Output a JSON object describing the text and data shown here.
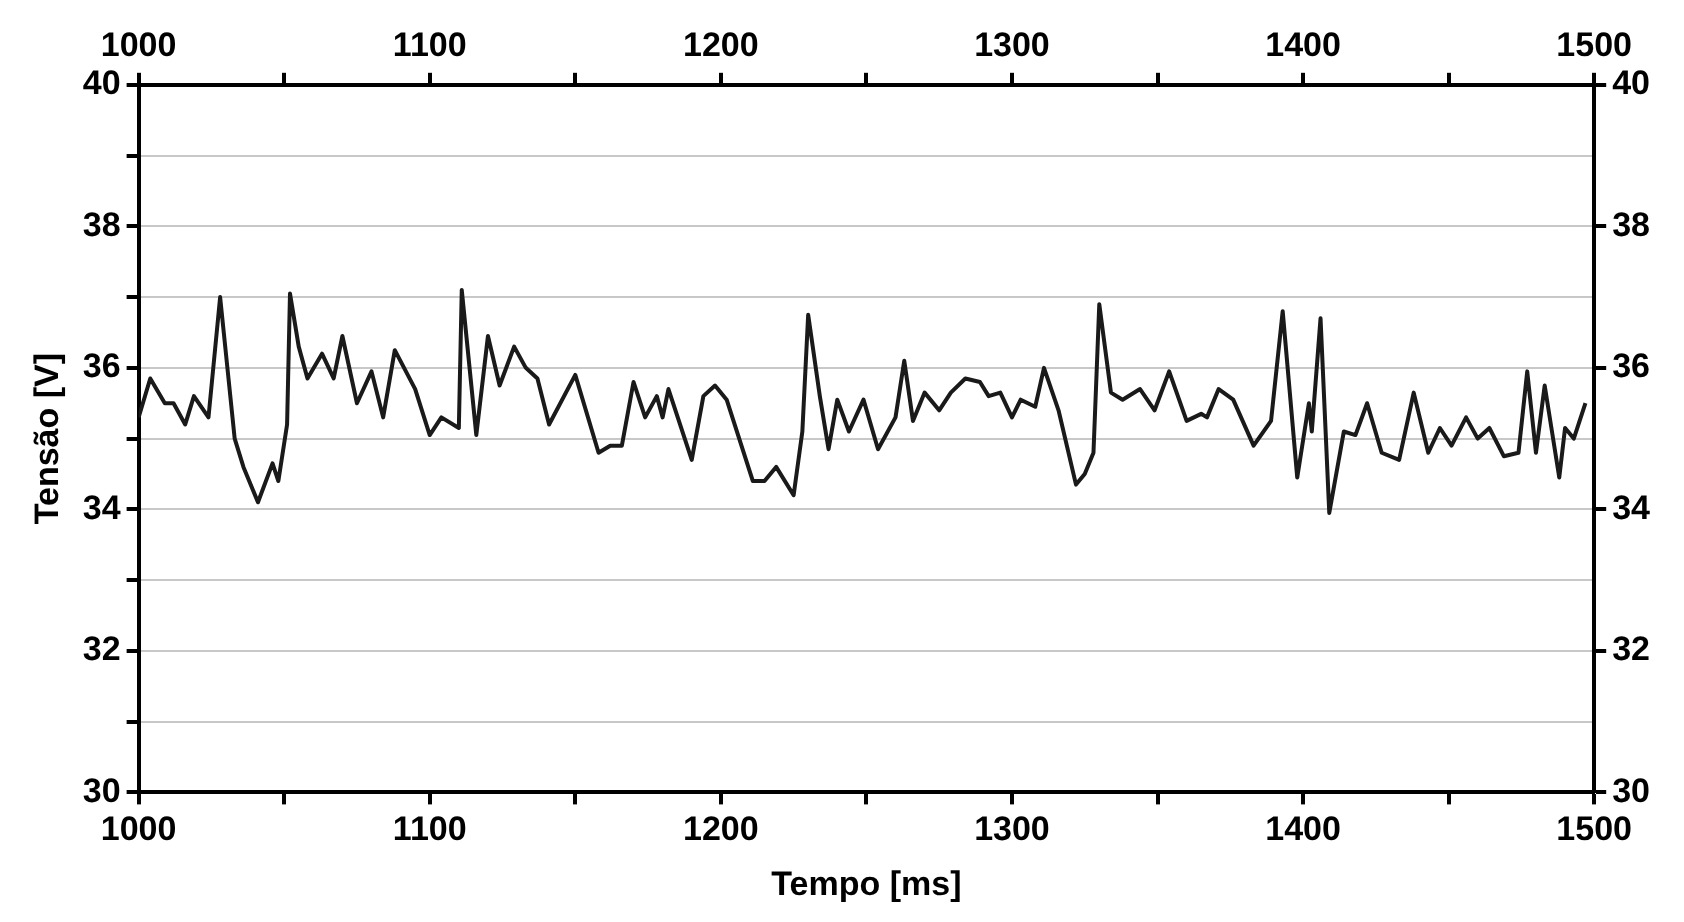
{
  "chart_data": {
    "type": "line",
    "xlabel": "Tempo [ms]",
    "ylabel": "Tensão [V]",
    "x": [
      1000,
      1004,
      1009,
      1012,
      1016,
      1019,
      1024,
      1028,
      1033,
      1036,
      1041,
      1046,
      1048,
      1051,
      1052,
      1055,
      1058,
      1063,
      1067,
      1070,
      1075,
      1080,
      1084,
      1088,
      1095,
      1100,
      1104,
      1110,
      1111,
      1116,
      1120,
      1124,
      1129,
      1133,
      1137,
      1141,
      1150,
      1158,
      1162,
      1166,
      1170,
      1174,
      1178,
      1180,
      1182,
      1190,
      1194,
      1198,
      1202,
      1211,
      1215,
      1219,
      1225,
      1228,
      1230,
      1234,
      1237,
      1240,
      1244,
      1249,
      1254,
      1260,
      1263,
      1266,
      1270,
      1275,
      1279,
      1284,
      1289,
      1292,
      1296,
      1300,
      1303,
      1308,
      1311,
      1316,
      1322,
      1325,
      1328,
      1330,
      1334,
      1338,
      1344,
      1349,
      1354,
      1360,
      1365,
      1367,
      1371,
      1376,
      1383,
      1389,
      1393,
      1398,
      1402,
      1403,
      1406,
      1409,
      1414,
      1418,
      1422,
      1427,
      1433,
      1438,
      1443,
      1447,
      1451,
      1456,
      1460,
      1464,
      1469,
      1474,
      1477,
      1480,
      1483,
      1488,
      1490,
      1493,
      1497
    ],
    "series": [
      {
        "color": "#1a1a1a",
        "values": [
          35.3,
          35.85,
          35.5,
          35.5,
          35.2,
          35.6,
          35.3,
          37.0,
          35.0,
          34.6,
          34.1,
          34.65,
          34.4,
          35.2,
          37.05,
          36.3,
          35.85,
          36.2,
          35.85,
          36.45,
          35.5,
          35.95,
          35.3,
          36.25,
          35.7,
          35.05,
          35.3,
          35.15,
          37.1,
          35.05,
          36.45,
          35.75,
          36.3,
          36.0,
          35.85,
          35.2,
          35.9,
          34.8,
          34.9,
          34.9,
          35.8,
          35.3,
          35.6,
          35.3,
          35.7,
          34.7,
          35.6,
          35.75,
          35.55,
          34.4,
          34.4,
          34.6,
          34.2,
          35.1,
          36.75,
          35.6,
          34.85,
          35.55,
          35.1,
          35.55,
          34.85,
          35.3,
          36.1,
          35.25,
          35.65,
          35.4,
          35.65,
          35.85,
          35.8,
          35.6,
          35.65,
          35.3,
          35.55,
          35.45,
          36.0,
          35.4,
          34.35,
          34.5,
          34.8,
          36.9,
          35.65,
          35.55,
          35.7,
          35.4,
          35.95,
          35.25,
          35.35,
          35.3,
          35.7,
          35.55,
          34.9,
          35.25,
          36.8,
          34.45,
          35.5,
          35.1,
          36.7,
          33.95,
          35.1,
          35.05,
          35.5,
          34.8,
          34.7,
          35.65,
          34.8,
          35.15,
          34.9,
          35.3,
          35.0,
          35.15,
          34.75,
          34.8,
          35.95,
          34.8,
          35.75,
          34.45,
          35.15,
          35.0,
          35.5
        ]
      }
    ],
    "xlim": [
      1000,
      1500
    ],
    "xticks": [
      1000,
      {
        "value": 1050,
        "label": null
      },
      1100,
      {
        "value": 1150,
        "label": null
      },
      1200,
      {
        "value": 1250,
        "label": null
      },
      1300,
      {
        "value": 1350,
        "label": null
      },
      1400,
      {
        "value": 1450,
        "label": null
      },
      1500
    ],
    "x2lim": [
      1000,
      1500
    ],
    "x2ticks": [
      1000,
      {
        "value": 1050,
        "label": null
      },
      1100,
      {
        "value": 1150,
        "label": null
      },
      1200,
      {
        "value": 1250,
        "label": null
      },
      1300,
      {
        "value": 1350,
        "label": null
      },
      1400,
      {
        "value": 1450,
        "label": null
      },
      1500
    ],
    "ylim": [
      30,
      40
    ],
    "yticks": [
      30,
      {
        "value": 31,
        "label": null
      },
      32,
      {
        "value": 33,
        "label": null
      },
      34,
      {
        "value": 35,
        "label": null
      },
      36,
      {
        "value": 37,
        "label": null
      },
      38,
      {
        "value": 39,
        "label": null
      },
      40
    ],
    "y2lim": [
      30,
      40
    ],
    "y2ticks": [
      30,
      32,
      34,
      36,
      38,
      40
    ],
    "grid": "y",
    "legend": false,
    "marker": "none",
    "line_style": "solid"
  }
}
